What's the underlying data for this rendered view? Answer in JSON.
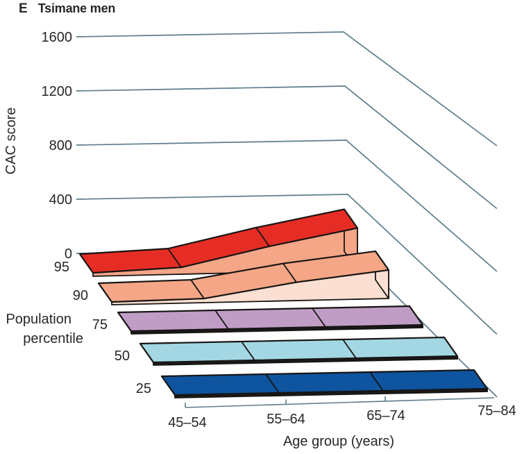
{
  "title": {
    "panel_letter": "E",
    "text": "Tsimane men"
  },
  "chart_data": {
    "type": "ribbon-3d",
    "panel": "E",
    "title": "Tsimane men",
    "xlabel": "Age group (years)",
    "ylabel": "CAC score",
    "zlabel_lines": [
      "Population",
      "percentile"
    ],
    "categories": [
      "45–54",
      "55–64",
      "65–74",
      "75–84"
    ],
    "y_ticks": [
      1600,
      1200,
      800,
      400,
      0
    ],
    "ylim": [
      0,
      1600
    ],
    "grid": true,
    "legend_position": "left-depth-axis",
    "series": [
      {
        "name": "95",
        "values": [
          5,
          30,
          170,
          290
        ],
        "top_color": "#e62d25",
        "side_color": "#f4a687"
      },
      {
        "name": "90",
        "values": [
          0,
          10,
          115,
          190
        ],
        "top_color": "#f4a687",
        "side_color": "#fbdfd2"
      },
      {
        "name": "75",
        "values": [
          0,
          0,
          0,
          0
        ],
        "top_color": "#bf9dc5",
        "side_color": "#1c1a19"
      },
      {
        "name": "50",
        "values": [
          0,
          0,
          0,
          0
        ],
        "top_color": "#a3d7e3",
        "side_color": "#1c1a19"
      },
      {
        "name": "25",
        "values": [
          0,
          0,
          0,
          0
        ],
        "top_color": "#0e549e",
        "side_color": "#1c1a19"
      }
    ],
    "colors": {
      "grid": "#5e7c8b",
      "outline": "#161412",
      "text": "#2a2624"
    }
  }
}
